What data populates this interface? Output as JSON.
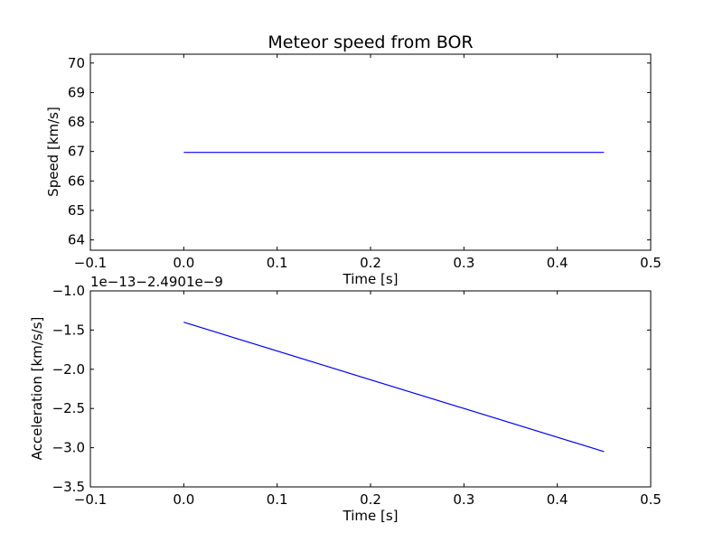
{
  "chart_data": [
    {
      "type": "line",
      "title": "Meteor speed from  BOR",
      "xlabel": "Time [s]",
      "ylabel": "Speed [km/s]",
      "xlim": [
        -0.1,
        0.5
      ],
      "ylim": [
        63.65,
        70.3
      ],
      "x_ticks": [
        -0.1,
        0.0,
        0.1,
        0.2,
        0.3,
        0.4,
        0.5
      ],
      "x_tick_labels": [
        "−0.1",
        "0.0",
        "0.1",
        "0.2",
        "0.3",
        "0.4",
        "0.5"
      ],
      "y_ticks": [
        64,
        65,
        66,
        67,
        68,
        69,
        70
      ],
      "y_tick_labels": [
        "64",
        "65",
        "66",
        "67",
        "68",
        "69",
        "70"
      ],
      "grid": false,
      "series": [
        {
          "color": "#0000ff",
          "x": [
            0.0,
            0.45
          ],
          "y": [
            66.97,
            66.97
          ]
        }
      ]
    },
    {
      "type": "line",
      "xlabel": "Time [s]",
      "ylabel": "Acceleration [km/s/s]",
      "offset_text": "1e−13−2.4901e−9",
      "xlim": [
        -0.1,
        0.5
      ],
      "ylim": [
        -3.5,
        -1.0
      ],
      "x_ticks": [
        -0.1,
        0.0,
        0.1,
        0.2,
        0.3,
        0.4,
        0.5
      ],
      "x_tick_labels": [
        "−0.1",
        "0.0",
        "0.1",
        "0.2",
        "0.3",
        "0.4",
        "0.5"
      ],
      "y_ticks": [
        -3.5,
        -3.0,
        -2.5,
        -2.0,
        -1.5,
        -1.0
      ],
      "y_tick_labels": [
        "−3.5",
        "−3.0",
        "−2.5",
        "−2.0",
        "−1.5",
        "−1.0"
      ],
      "grid": false,
      "series": [
        {
          "color": "#0000ff",
          "x": [
            0.0,
            0.45
          ],
          "y": [
            -1.4,
            -3.05
          ]
        }
      ]
    }
  ]
}
